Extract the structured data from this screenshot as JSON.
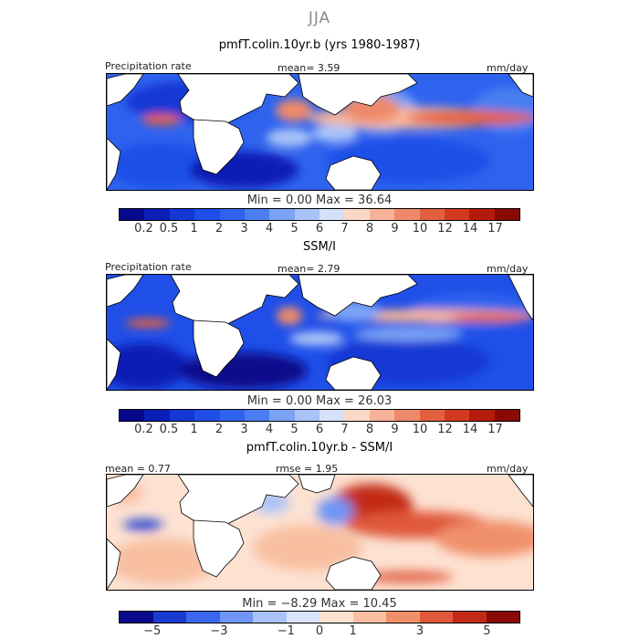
{
  "season": "JJA",
  "panels": [
    {
      "title": "pmfT.colin.10yr.b (yrs 1980-1987)",
      "left_label": "Precipitation rate",
      "mean_text": "mean=    3.59",
      "units": "mm/day",
      "minmax": "Min =    0.00 Max =  36.64",
      "colorbar_labels": [
        "0.2",
        "0.5",
        "1",
        "2",
        "3",
        "4",
        "5",
        "6",
        "7",
        "8",
        "9",
        "10",
        "12",
        "14",
        "17"
      ]
    },
    {
      "title": "SSM/I",
      "left_label": "Precipitation rate",
      "mean_text": "mean=    2.79",
      "units": "mm/day",
      "minmax": "Min =    0.00 Max =  26.03",
      "colorbar_labels": [
        "0.2",
        "0.5",
        "1",
        "2",
        "3",
        "4",
        "5",
        "6",
        "7",
        "8",
        "9",
        "10",
        "12",
        "14",
        "17"
      ]
    },
    {
      "title": "pmfT.colin.10yr.b - SSM/I",
      "left_label": "mean =    0.77",
      "mid_label": "rmse =    1.95",
      "units": "mm/day",
      "minmax": "Min =   −8.29 Max =  10.45",
      "colorbar_labels": [
        "−5",
        "−3",
        "−1",
        "0",
        "1",
        "3",
        "5"
      ]
    }
  ],
  "colors": {
    "precip_scale": [
      "#08088c",
      "#0a1fb5",
      "#1537d4",
      "#1f4fe8",
      "#2f63ee",
      "#4a7ef2",
      "#7aa2f5",
      "#a9c3f8",
      "#d5e1fb",
      "#fbd8c6",
      "#f6b39a",
      "#ee8a6b",
      "#e3603f",
      "#d23a1f",
      "#b31c0c",
      "#8a0a06"
    ],
    "diff_scale": [
      "#0a0a8c",
      "#1a3bd0",
      "#3b66ee",
      "#6f95f5",
      "#a9c3f8",
      "#d8e4fb",
      "#fde2d2",
      "#f8bfa1",
      "#f0906b",
      "#e0583a",
      "#c22a17",
      "#8a0a06"
    ],
    "land": "#ffffff",
    "coast": "#000000"
  }
}
